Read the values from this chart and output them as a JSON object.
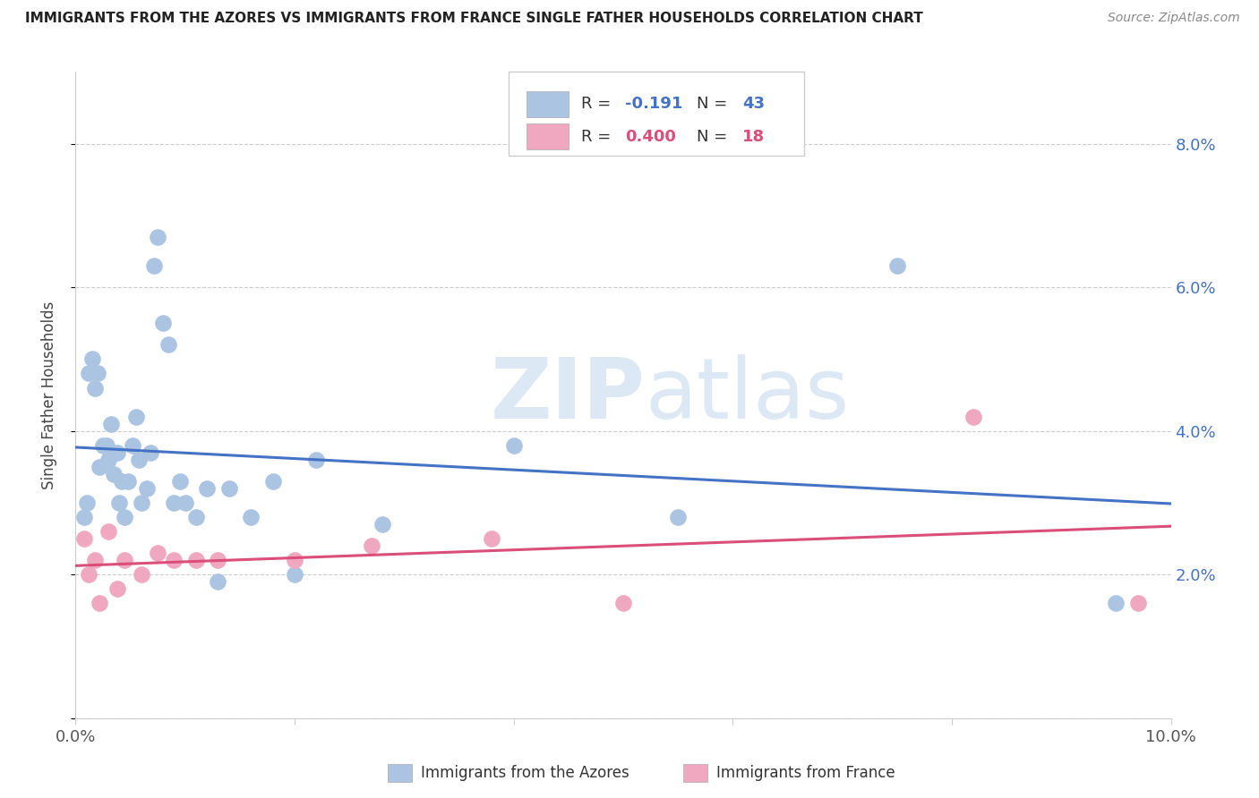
{
  "title": "IMMIGRANTS FROM THE AZORES VS IMMIGRANTS FROM FRANCE SINGLE FATHER HOUSEHOLDS CORRELATION CHART",
  "source": "Source: ZipAtlas.com",
  "ylabel": "Single Father Households",
  "xlim": [
    0.0,
    0.1
  ],
  "ylim": [
    0.0,
    0.09
  ],
  "xticks": [
    0.0,
    0.02,
    0.04,
    0.06,
    0.08,
    0.1
  ],
  "yticks": [
    0.0,
    0.02,
    0.04,
    0.06,
    0.08
  ],
  "xticklabels": [
    "0.0%",
    "",
    "",
    "",
    "",
    "10.0%"
  ],
  "yticklabels_right": [
    "",
    "2.0%",
    "4.0%",
    "6.0%",
    "8.0%"
  ],
  "azores_color": "#aac4e2",
  "france_color": "#f0a8c0",
  "azores_line_color": "#4472c4",
  "france_line_color": "#d94f7a",
  "tick_color": "#4472c4",
  "background_color": "#ffffff",
  "watermark_zip": "ZIP",
  "watermark_atlas": "atlas",
  "legend_r_azores": "-0.191",
  "legend_n_azores": "43",
  "legend_r_france": "0.400",
  "legend_n_france": "18",
  "azores_x": [
    0.0008,
    0.001,
    0.0012,
    0.0015,
    0.0018,
    0.002,
    0.0022,
    0.0025,
    0.0028,
    0.003,
    0.0032,
    0.0035,
    0.0038,
    0.004,
    0.0042,
    0.0045,
    0.0048,
    0.0052,
    0.0055,
    0.0058,
    0.006,
    0.0065,
    0.0068,
    0.0072,
    0.0075,
    0.008,
    0.0085,
    0.009,
    0.0095,
    0.01,
    0.011,
    0.012,
    0.013,
    0.014,
    0.016,
    0.018,
    0.02,
    0.022,
    0.028,
    0.04,
    0.055,
    0.075,
    0.095
  ],
  "azores_y": [
    0.028,
    0.03,
    0.048,
    0.05,
    0.046,
    0.048,
    0.035,
    0.038,
    0.038,
    0.036,
    0.041,
    0.034,
    0.037,
    0.03,
    0.033,
    0.028,
    0.033,
    0.038,
    0.042,
    0.036,
    0.03,
    0.032,
    0.037,
    0.063,
    0.067,
    0.055,
    0.052,
    0.03,
    0.033,
    0.03,
    0.028,
    0.032,
    0.019,
    0.032,
    0.028,
    0.033,
    0.02,
    0.036,
    0.027,
    0.038,
    0.028,
    0.063,
    0.016
  ],
  "france_x": [
    0.0008,
    0.0012,
    0.0018,
    0.0022,
    0.003,
    0.0038,
    0.0045,
    0.006,
    0.0075,
    0.009,
    0.011,
    0.013,
    0.02,
    0.027,
    0.038,
    0.05,
    0.082,
    0.097
  ],
  "france_y": [
    0.025,
    0.02,
    0.022,
    0.016,
    0.026,
    0.018,
    0.022,
    0.02,
    0.023,
    0.022,
    0.022,
    0.022,
    0.022,
    0.024,
    0.025,
    0.016,
    0.042,
    0.016
  ]
}
